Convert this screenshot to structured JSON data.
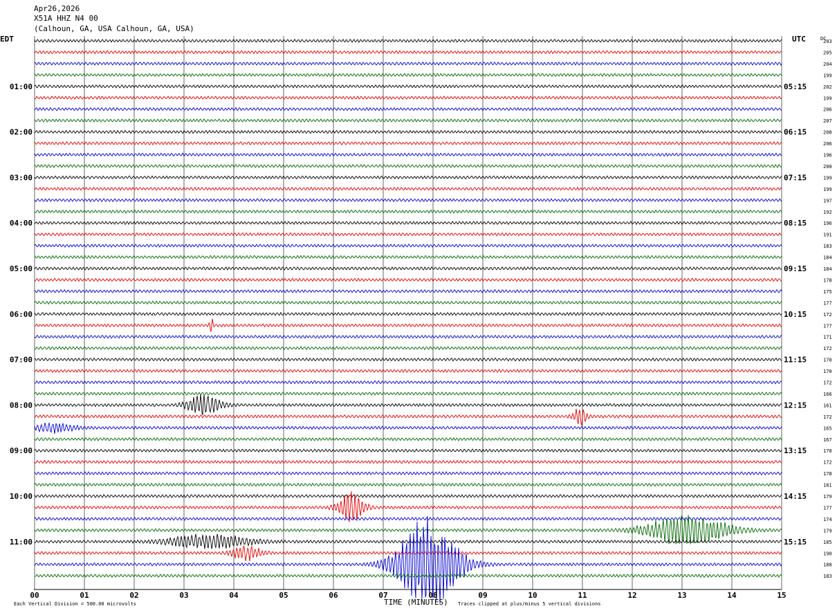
{
  "header": {
    "date": "Apr26,2026",
    "station": "X51A HHZ N4 00",
    "location": "(Calhoun, GA, USA Calhoun, GA, USA)"
  },
  "left_tz": "EDT",
  "right_tz": "UTC",
  "dc_label": "DC",
  "xlabel": "TIME (MINUTES)",
  "footer": {
    "left": "Each Vertical Division =  500.00 microvolts",
    "right": "Traces clipped at plus/minus 5 vertical divisions"
  },
  "colors": {
    "traces": [
      "#000000",
      "#dd0000",
      "#0000cc",
      "#006600"
    ],
    "grid": "#000000"
  },
  "chart_data": {
    "type": "line",
    "title": "X51A HHZ N4 00",
    "xlabel": "TIME (MINUTES)",
    "xlim": [
      0,
      15
    ],
    "x_ticks": [
      "00",
      "01",
      "02",
      "03",
      "04",
      "05",
      "06",
      "07",
      "08",
      "09",
      "10",
      "11",
      "12",
      "13",
      "14",
      "15"
    ],
    "row_minutes": 15,
    "num_rows": 48,
    "left_hour_labels": [
      "01:00",
      "02:00",
      "03:00",
      "04:00",
      "05:00",
      "06:00",
      "07:00",
      "08:00",
      "09:00",
      "10:00",
      "11:00"
    ],
    "right_hour_labels": [
      "05:15",
      "06:15",
      "07:15",
      "08:15",
      "09:15",
      "10:15",
      "11:15",
      "12:15",
      "13:15",
      "14:15",
      "15:15"
    ],
    "dc_offsets": [
      203,
      205,
      204,
      199,
      202,
      199,
      206,
      207,
      208,
      206,
      196,
      200,
      199,
      199,
      197,
      192,
      196,
      191,
      183,
      184,
      184,
      178,
      175,
      177,
      172,
      177,
      171,
      172,
      170,
      170,
      172,
      166,
      161,
      172,
      165,
      167,
      170,
      172,
      178,
      181,
      179,
      177,
      174,
      179,
      185,
      190,
      188,
      183
    ],
    "events": [
      {
        "row": 25,
        "minute": 3.55,
        "amplitude": 1.3,
        "duration_min": 0.05
      },
      {
        "row": 32,
        "minute": 3.4,
        "amplitude": 1.1,
        "duration_min": 0.5
      },
      {
        "row": 33,
        "minute": 10.95,
        "amplitude": 0.9,
        "duration_min": 0.2
      },
      {
        "row": 34,
        "minute": 0.4,
        "amplitude": 0.5,
        "duration_min": 0.6
      },
      {
        "row": 41,
        "minute": 6.35,
        "amplitude": 1.6,
        "duration_min": 0.4
      },
      {
        "row": 43,
        "minute": 13.1,
        "amplitude": 1.7,
        "duration_min": 1.2
      },
      {
        "row": 44,
        "minute": 3.5,
        "amplitude": 0.8,
        "duration_min": 1.2
      },
      {
        "row": 45,
        "minute": 4.25,
        "amplitude": 0.9,
        "duration_min": 0.4
      },
      {
        "row": 46,
        "minute": 7.9,
        "amplitude": 5.0,
        "duration_min": 0.9
      }
    ]
  }
}
